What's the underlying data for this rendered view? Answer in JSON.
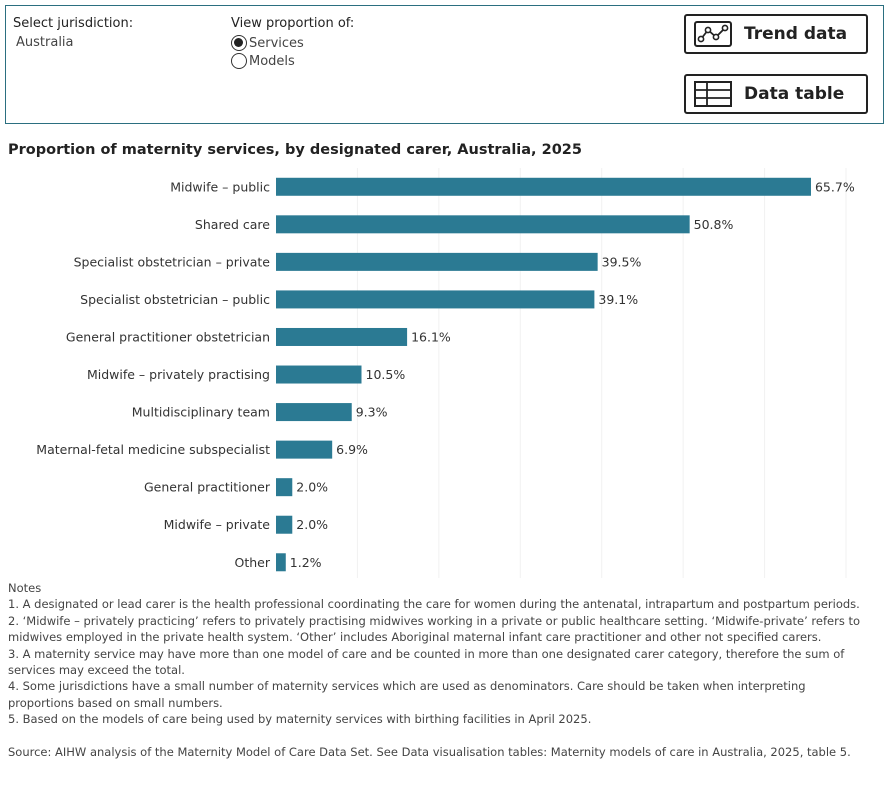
{
  "filters": {
    "jurisdiction_label": "Select jurisdiction:",
    "jurisdiction_value": "Australia",
    "view_label": "View proportion of:",
    "options": [
      {
        "label": "Services",
        "selected": true
      },
      {
        "label": "Models",
        "selected": false
      }
    ]
  },
  "buttons": {
    "trend": {
      "label": "Trend data",
      "icon": "line-chart-icon"
    },
    "table": {
      "label": "Data table",
      "icon": "table-icon"
    }
  },
  "colors": {
    "bar": "#2b7a93",
    "border": "#2b6f80"
  },
  "chart_data": {
    "type": "bar",
    "orientation": "horizontal",
    "title": "Proportion of maternity services, by designated carer, Australia, 2025",
    "categories": [
      "Midwife – public",
      "Shared care",
      "Specialist obstetrician – private",
      "Specialist obstetrician – public",
      "General practitioner obstetrician",
      "Midwife – privately practising",
      "Multidisciplinary team",
      "Maternal-fetal medicine subspecialist",
      "General practitioner",
      "Midwife – private",
      "Other"
    ],
    "values": [
      65.7,
      50.8,
      39.5,
      39.1,
      16.1,
      10.5,
      9.3,
      6.9,
      2.0,
      2.0,
      1.2
    ],
    "value_labels": [
      "65.7%",
      "50.8%",
      "39.5%",
      "39.1%",
      "16.1%",
      "10.5%",
      "9.3%",
      "6.9%",
      "2.0%",
      "2.0%",
      "1.2%"
    ],
    "unit": "%",
    "xlim": [
      0,
      70
    ],
    "grid": true
  },
  "notes": {
    "heading": "Notes",
    "items": [
      "1. A designated or lead carer is the health professional coordinating the care for women during the antenatal, intrapartum and postpartum periods.",
      "2. ‘Midwife – privately practicing’ refers to privately practising midwives working in a private or public healthcare setting. ‘Midwife-private’ refers to midwives employed in the private health system. ‘Other’ includes Aboriginal maternal infant care practitioner and other not specified carers.",
      "3. A maternity service may have more than one model of care and be counted in more than one designated carer category, therefore the sum of services may exceed the total.",
      "4. Some jurisdictions have a small number of maternity services which are used as denominators. Care should be taken when interpreting proportions based on small numbers.",
      "5. Based on the models of care being used by maternity services with birthing facilities in April 2025."
    ]
  },
  "source": "Source: AIHW analysis of the Maternity Model of Care Data Set. See Data visualisation tables: Maternity models of care in Australia, 2025, table 5."
}
